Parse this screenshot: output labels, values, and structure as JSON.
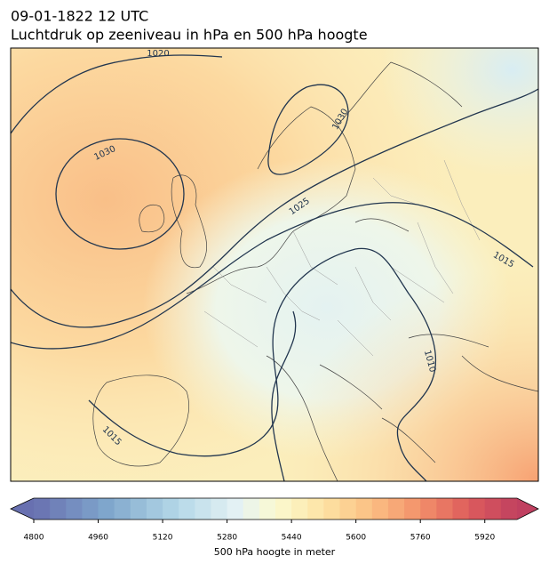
{
  "title": "09-01-1822 12 UTC",
  "subtitle": "Luchtdruk op zeeniveau in hPa en 500 hPa hoogte",
  "isobar_labels": [
    1020,
    1030,
    1030,
    1025,
    1015,
    1010,
    1015
  ],
  "colorbar": {
    "lim": [
      4800,
      6000
    ],
    "ticks": [
      4800,
      4960,
      5120,
      5280,
      5440,
      5600,
      5760,
      5920
    ],
    "label": "500 hPa hoogte in meter"
  }
}
